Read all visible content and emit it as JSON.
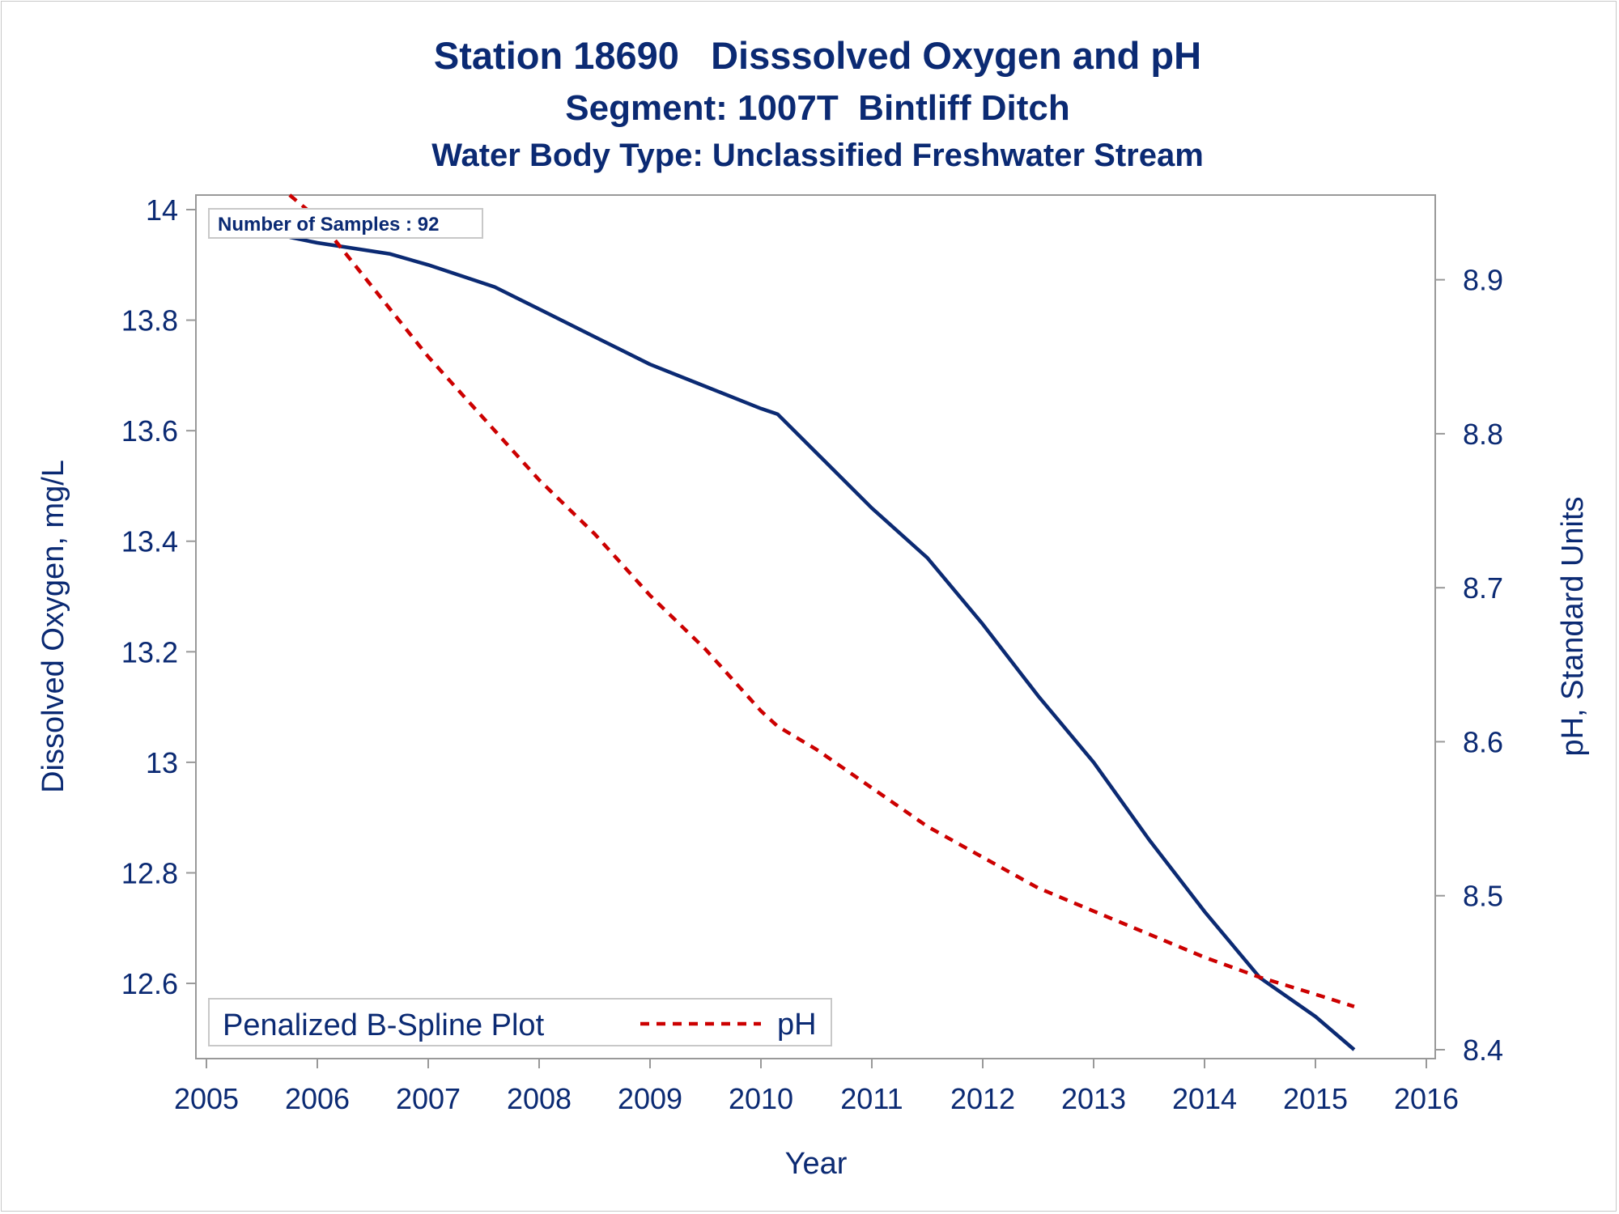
{
  "chart_data": {
    "type": "line",
    "title": "Station 18690   Disssolved Oxygen and pH",
    "subtitle": "Segment: 1007T  Bintliff Ditch",
    "subtitle2": "Water Body Type: Unclassified Freshwater Stream",
    "xlabel": "Year",
    "ylabel": "Dissolved Oxygen, mg/L",
    "y2label": "pH, Standard Units",
    "xlim": [
      2005,
      2016
    ],
    "ylim": [
      12.48,
      14.0
    ],
    "y2lim": [
      8.4,
      8.955
    ],
    "xticks": [
      "2005",
      "2006",
      "2007",
      "2008",
      "2009",
      "2010",
      "2011",
      "2012",
      "2013",
      "2014",
      "2015",
      "2016"
    ],
    "yticks": [
      "12.6",
      "12.8",
      "13",
      "13.2",
      "13.4",
      "13.6",
      "13.8",
      "14"
    ],
    "y2ticks": [
      "8.4",
      "8.5",
      "8.6",
      "8.7",
      "8.8",
      "8.9"
    ],
    "annotation": "Number of Samples : 92",
    "legend": {
      "title": "Penalized B-Spline Plot",
      "entries": [
        "pH"
      ],
      "placement": "bottom-left"
    },
    "grid": false,
    "series": [
      {
        "axis": "left",
        "color": "#0b2a73",
        "style": "solid",
        "points": [
          [
            2005.75,
            13.95
          ],
          [
            2006.0,
            13.94
          ],
          [
            2006.65,
            13.92
          ],
          [
            2007.0,
            13.9
          ],
          [
            2007.6,
            13.86
          ],
          [
            2008.0,
            13.82
          ],
          [
            2008.5,
            13.77
          ],
          [
            2009.0,
            13.72
          ],
          [
            2009.5,
            13.68
          ],
          [
            2010.0,
            13.64
          ],
          [
            2010.15,
            13.63
          ],
          [
            2010.5,
            13.56
          ],
          [
            2011.0,
            13.46
          ],
          [
            2011.5,
            13.37
          ],
          [
            2012.0,
            13.25
          ],
          [
            2012.5,
            13.12
          ],
          [
            2013.0,
            13.0
          ],
          [
            2013.5,
            12.86
          ],
          [
            2014.0,
            12.73
          ],
          [
            2014.5,
            12.61
          ],
          [
            2015.0,
            12.54
          ],
          [
            2015.35,
            12.48
          ]
        ]
      },
      {
        "name": "pH",
        "axis": "right",
        "color": "#cc0000",
        "style": "dashed",
        "points": [
          [
            2005.75,
            8.955
          ],
          [
            2006.0,
            8.94
          ],
          [
            2006.5,
            8.895
          ],
          [
            2007.0,
            8.85
          ],
          [
            2007.5,
            8.81
          ],
          [
            2008.0,
            8.77
          ],
          [
            2008.5,
            8.735
          ],
          [
            2009.0,
            8.695
          ],
          [
            2009.5,
            8.66
          ],
          [
            2010.0,
            8.62
          ],
          [
            2010.15,
            8.61
          ],
          [
            2010.5,
            8.595
          ],
          [
            2011.0,
            8.57
          ],
          [
            2011.5,
            8.545
          ],
          [
            2012.0,
            8.525
          ],
          [
            2012.5,
            8.505
          ],
          [
            2013.0,
            8.49
          ],
          [
            2013.5,
            8.475
          ],
          [
            2014.0,
            8.46
          ],
          [
            2014.5,
            8.447
          ],
          [
            2015.0,
            8.436
          ],
          [
            2015.35,
            8.428
          ]
        ]
      }
    ]
  }
}
